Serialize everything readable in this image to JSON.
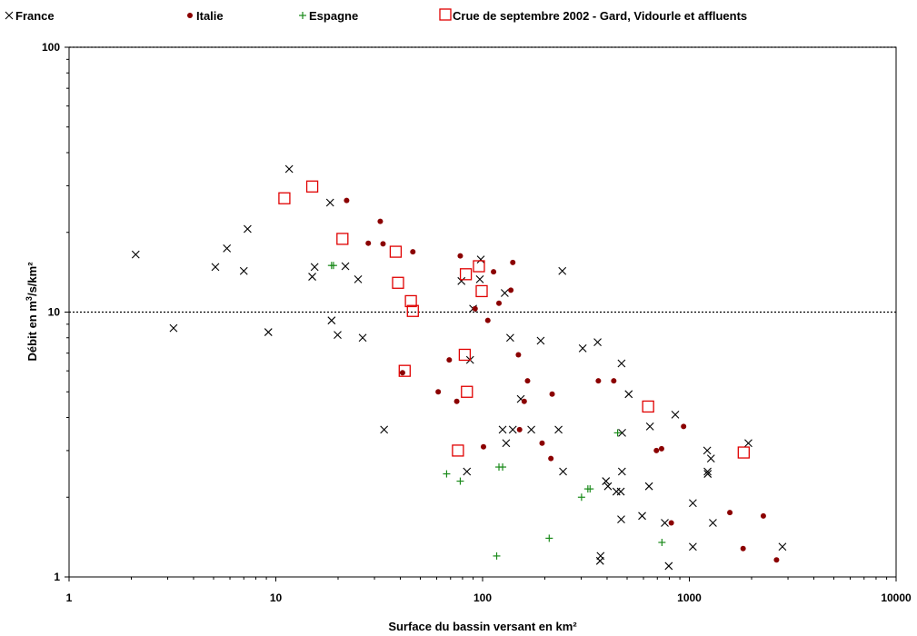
{
  "chart_data": {
    "type": "scatter",
    "title": "",
    "xlabel": "Surface du bassin versant en km²",
    "ylabel_prefix": "Débit en m",
    "ylabel_sup": "3",
    "ylabel_suffix": "/s/km²",
    "x_scale": "log",
    "y_scale": "log",
    "xlim": [
      1,
      10000
    ],
    "ylim": [
      1,
      100
    ],
    "x_ticks": [
      "1",
      "10",
      "100",
      "1000",
      "10000"
    ],
    "y_ticks": [
      "1",
      "10",
      "100"
    ],
    "reference_lines_y": [
      10,
      100
    ],
    "legend_position": "top",
    "series": [
      {
        "name": "France",
        "marker": "x",
        "color": "#000000",
        "points": [
          [
            2.1,
            16.5
          ],
          [
            3.2,
            8.7
          ],
          [
            5.1,
            14.8
          ],
          [
            5.8,
            17.4
          ],
          [
            7.0,
            14.3
          ],
          [
            7.3,
            20.6
          ],
          [
            9.2,
            8.4
          ],
          [
            11.6,
            34.7
          ],
          [
            15.0,
            13.6
          ],
          [
            15.4,
            14.8
          ],
          [
            18.3,
            25.9
          ],
          [
            18.6,
            9.3
          ],
          [
            19.9,
            8.2
          ],
          [
            21.7,
            14.9
          ],
          [
            25.0,
            13.3
          ],
          [
            26.3,
            8.0
          ],
          [
            33.4,
            3.6
          ],
          [
            79.0,
            13.1
          ],
          [
            84.0,
            2.5
          ],
          [
            87.0,
            6.6
          ],
          [
            90.0,
            10.3
          ],
          [
            97.0,
            13.3
          ],
          [
            98.0,
            15.8
          ],
          [
            125.0,
            3.6
          ],
          [
            128.0,
            11.8
          ],
          [
            130.0,
            3.2
          ],
          [
            136.0,
            8.0
          ],
          [
            140.0,
            3.6
          ],
          [
            153.0,
            4.7
          ],
          [
            172.0,
            3.6
          ],
          [
            191.0,
            7.8
          ],
          [
            233.0,
            3.6
          ],
          [
            243.0,
            14.3
          ],
          [
            245.0,
            2.5
          ],
          [
            305.0,
            7.3
          ],
          [
            360.0,
            7.7
          ],
          [
            370.0,
            1.15
          ],
          [
            372.0,
            1.2
          ],
          [
            395.0,
            2.3
          ],
          [
            404.0,
            2.2
          ],
          [
            444.0,
            2.1
          ],
          [
            466.0,
            2.1
          ],
          [
            468.0,
            1.65
          ],
          [
            470.0,
            6.4
          ],
          [
            472.0,
            2.5
          ],
          [
            473.0,
            3.5
          ],
          [
            509.0,
            4.9
          ],
          [
            591.0,
            1.7
          ],
          [
            638.0,
            2.2
          ],
          [
            645.0,
            3.7
          ],
          [
            761.0,
            1.6
          ],
          [
            795.0,
            1.1
          ],
          [
            855.0,
            4.1
          ],
          [
            1040.0,
            1.9
          ],
          [
            1040.0,
            1.3
          ],
          [
            1220.0,
            3.0
          ],
          [
            1225.0,
            2.5
          ],
          [
            1227.0,
            2.45
          ],
          [
            1272.0,
            2.8
          ],
          [
            1300.0,
            1.6
          ],
          [
            1930.0,
            3.2
          ],
          [
            2820.0,
            1.3
          ]
        ]
      },
      {
        "name": "Italie",
        "marker": "dot",
        "color": "#8b0000",
        "points": [
          [
            22.0,
            26.4
          ],
          [
            28.0,
            18.2
          ],
          [
            32.0,
            22.0
          ],
          [
            33.0,
            18.1
          ],
          [
            41.0,
            5.9
          ],
          [
            46.0,
            16.9
          ],
          [
            61.0,
            5.0
          ],
          [
            69.0,
            6.6
          ],
          [
            75.0,
            4.6
          ],
          [
            78.0,
            16.3
          ],
          [
            92.0,
            10.3
          ],
          [
            101.0,
            3.1
          ],
          [
            106.0,
            9.3
          ],
          [
            113.0,
            14.2
          ],
          [
            120.0,
            10.8
          ],
          [
            137.0,
            12.1
          ],
          [
            140.0,
            15.4
          ],
          [
            149.0,
            6.9
          ],
          [
            151.0,
            3.6
          ],
          [
            159.0,
            4.6
          ],
          [
            165.0,
            5.5
          ],
          [
            194.0,
            3.2
          ],
          [
            214.0,
            2.8
          ],
          [
            217.0,
            4.9
          ],
          [
            363.0,
            5.5
          ],
          [
            431.0,
            5.5
          ],
          [
            693.0,
            3.0
          ],
          [
            734.0,
            3.05
          ],
          [
            818.0,
            1.6
          ],
          [
            938.0,
            3.7
          ],
          [
            1570.0,
            1.75
          ],
          [
            1820.0,
            1.28
          ],
          [
            2280.0,
            1.7
          ],
          [
            2640.0,
            1.16
          ]
        ]
      },
      {
        "name": "Espagne",
        "marker": "plus",
        "color": "#1a8a1a",
        "points": [
          [
            18.6,
            15.0
          ],
          [
            19.0,
            15.0
          ],
          [
            67.0,
            2.45
          ],
          [
            78.0,
            2.3
          ],
          [
            117.0,
            1.2
          ],
          [
            120.0,
            2.6
          ],
          [
            125.0,
            2.6
          ],
          [
            210.0,
            1.4
          ],
          [
            301.0,
            2.0
          ],
          [
            323.0,
            2.15
          ],
          [
            331.0,
            2.15
          ],
          [
            450.0,
            3.5
          ],
          [
            737.0,
            1.35
          ]
        ]
      },
      {
        "name": "Crue de septembre 2002 - Gard, Vidourle et affluents",
        "marker": "square",
        "color": "#e00000",
        "points": [
          [
            11.0,
            26.9
          ],
          [
            15.0,
            29.8
          ],
          [
            21.0,
            18.9
          ],
          [
            38.0,
            16.9
          ],
          [
            39.0,
            12.9
          ],
          [
            42.0,
            6.0
          ],
          [
            45.0,
            11.0
          ],
          [
            46.0,
            10.1
          ],
          [
            76.0,
            3.0
          ],
          [
            82.0,
            6.9
          ],
          [
            83.0,
            13.9
          ],
          [
            84.0,
            5.0
          ],
          [
            96.0,
            14.9
          ],
          [
            99.0,
            12.0
          ],
          [
            632.0,
            4.4
          ],
          [
            1832.0,
            2.95
          ]
        ]
      }
    ]
  }
}
